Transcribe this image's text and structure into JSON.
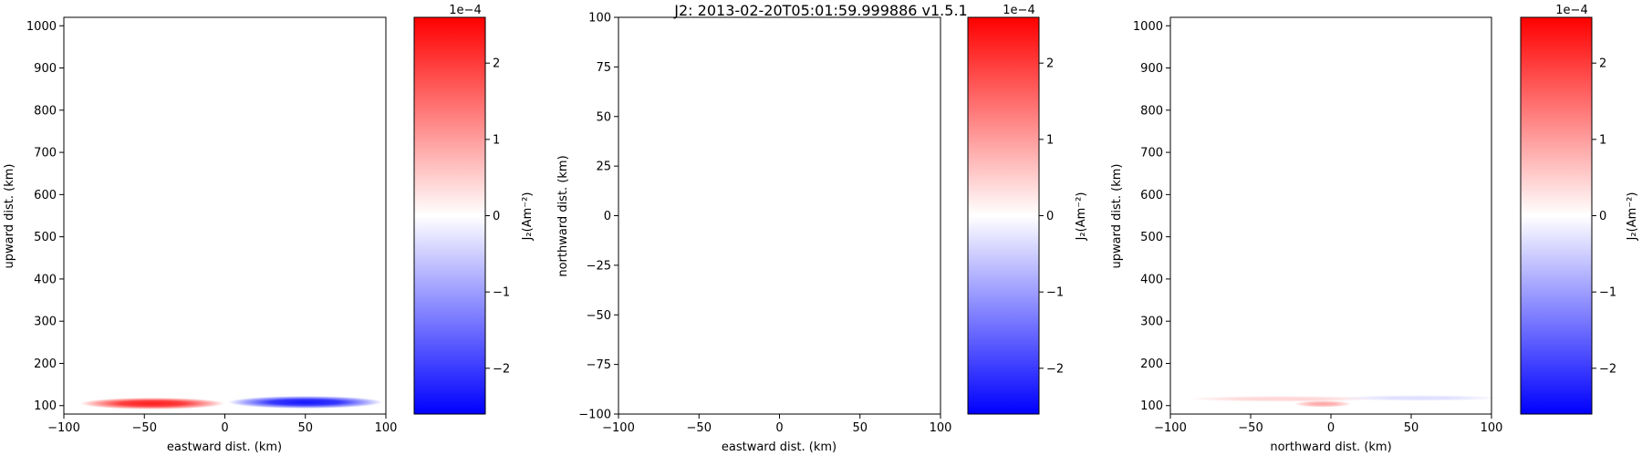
{
  "figure": {
    "title": "J2: 2013-02-20T05:01:59.999886  v1.5.1"
  },
  "colors": {
    "positive": "#ff0000",
    "zero": "#ffffff",
    "negative": "#0000ff",
    "axis": "#000000"
  },
  "chart_data": [
    {
      "type": "heatmap",
      "xlabel": "eastward dist. (km)",
      "ylabel": "upward dist. (km)",
      "xlim": [
        -100,
        100
      ],
      "ylim": [
        80,
        1020
      ],
      "xticks": [
        -100,
        -50,
        0,
        50,
        100
      ],
      "yticks": [
        100,
        200,
        300,
        400,
        500,
        600,
        700,
        800,
        900,
        1000
      ],
      "colorbar": {
        "label": "J₂(Am⁻²)",
        "scale": "1e−4",
        "range": [
          -2.6,
          2.6
        ],
        "ticks": [
          -2,
          -1,
          0,
          1,
          2
        ]
      },
      "features": [
        {
          "x_center": -45,
          "y_center": 105,
          "x_halfwidth": 45,
          "y_halfwidth": 14,
          "value": 2.3
        },
        {
          "x_center": 50,
          "y_center": 108,
          "x_halfwidth": 48,
          "y_halfwidth": 15,
          "value": -2.4
        }
      ]
    },
    {
      "type": "heatmap",
      "xlabel": "eastward dist. (km)",
      "ylabel": "northward dist. (km)",
      "xlim": [
        -100,
        100
      ],
      "ylim": [
        -100,
        100
      ],
      "xticks": [
        -100,
        -50,
        0,
        50,
        100
      ],
      "yticks": [
        -100,
        -75,
        -50,
        -25,
        0,
        25,
        50,
        75,
        100
      ],
      "colorbar": {
        "label": "J₂(Am⁻²)",
        "scale": "1e−4",
        "range": [
          -2.6,
          2.6
        ],
        "ticks": [
          -2,
          -1,
          0,
          1,
          2
        ]
      },
      "features": []
    },
    {
      "type": "heatmap",
      "xlabel": "northward dist. (km)",
      "ylabel": "upward dist. (km)",
      "xlim": [
        -100,
        100
      ],
      "ylim": [
        80,
        1020
      ],
      "xticks": [
        -100,
        -50,
        0,
        50,
        100
      ],
      "yticks": [
        100,
        200,
        300,
        400,
        500,
        600,
        700,
        800,
        900,
        1000
      ],
      "colorbar": {
        "label": "J₂(Am⁻²)",
        "scale": "1e−4",
        "range": [
          -2.6,
          2.6
        ],
        "ticks": [
          -2,
          -1,
          0,
          1,
          2
        ]
      },
      "features": [
        {
          "x_center": -30,
          "y_center": 116,
          "x_halfwidth": 60,
          "y_halfwidth": 7,
          "value": 0.45
        },
        {
          "x_center": -5,
          "y_center": 104,
          "x_halfwidth": 18,
          "y_halfwidth": 8,
          "value": 0.9
        },
        {
          "x_center": 55,
          "y_center": 118,
          "x_halfwidth": 50,
          "y_halfwidth": 7,
          "value": -0.35
        }
      ]
    }
  ]
}
